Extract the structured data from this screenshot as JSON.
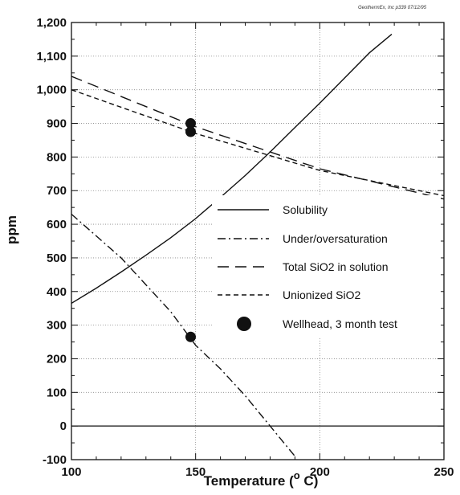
{
  "chart_data": {
    "type": "line",
    "credit": "GeothermEx, Inc  p339 07/12/95",
    "xlabel": "Temperature (",
    "xlabel_super": "o",
    "xlabel_unit": " C)",
    "ylabel": "ppm",
    "xlim": [
      100,
      250
    ],
    "ylim": [
      -100,
      1200
    ],
    "xticks": [
      100,
      150,
      200,
      250
    ],
    "xtick_labels": [
      "100",
      "150",
      "200",
      "250"
    ],
    "yticks": [
      -100,
      0,
      100,
      200,
      300,
      400,
      500,
      600,
      700,
      800,
      900,
      1000,
      1100,
      1200
    ],
    "ytick_labels": [
      "-100",
      "0",
      "100",
      "200",
      "300",
      "400",
      "500",
      "600",
      "700",
      "800",
      "900",
      "1,000",
      "1,100",
      "1,200"
    ],
    "grid": true,
    "legend_position": "right-center",
    "zero_line": true,
    "series": [
      {
        "name": "Solubility",
        "style": "solid",
        "color": "#111111",
        "x": [
          100,
          110,
          120,
          130,
          140,
          150,
          160,
          170,
          180,
          190,
          200,
          210,
          220,
          229
        ],
        "y": [
          365,
          410,
          458,
          508,
          560,
          617,
          680,
          745,
          815,
          888,
          960,
          1035,
          1110,
          1165
        ]
      },
      {
        "name": "Under/oversaturation",
        "style": "dashdot",
        "color": "#111111",
        "x": [
          100,
          120,
          140,
          150,
          160,
          170,
          180,
          190
        ],
        "y": [
          630,
          500,
          340,
          240,
          170,
          90,
          0,
          -90
        ]
      },
      {
        "name": "Total SiO2 in solution",
        "style": "longdash",
        "color": "#111111",
        "x": [
          100,
          150,
          200,
          250
        ],
        "y": [
          1040,
          890,
          765,
          675
        ]
      },
      {
        "name": "Unionized SiO2",
        "style": "shortdash",
        "color": "#111111",
        "x": [
          100,
          150,
          200,
          250
        ],
        "y": [
          1000,
          870,
          760,
          685
        ]
      },
      {
        "name": "Wellhead, 3 month test",
        "style": "marker",
        "color": "#111111",
        "x": [
          148,
          148,
          148
        ],
        "y": [
          900,
          875,
          265
        ]
      }
    ]
  }
}
